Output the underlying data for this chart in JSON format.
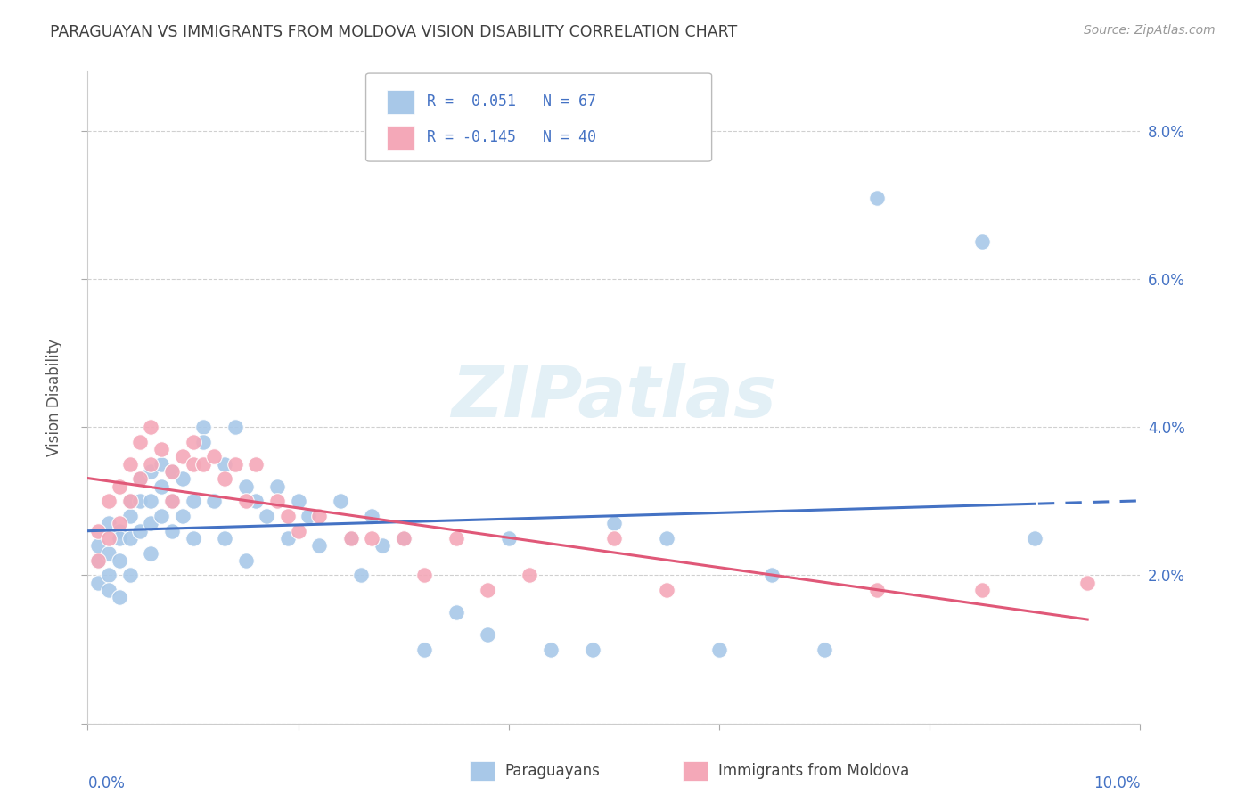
{
  "title": "PARAGUAYAN VS IMMIGRANTS FROM MOLDOVA VISION DISABILITY CORRELATION CHART",
  "source": "Source: ZipAtlas.com",
  "ylabel": "Vision Disability",
  "xmin": 0.0,
  "xmax": 0.1,
  "ymin": 0.0,
  "ymax": 0.088,
  "color_paraguayan": "#a8c8e8",
  "color_moldova": "#f4a8b8",
  "color_line_paraguayan": "#4472c4",
  "color_line_moldova": "#e05878",
  "color_axis_labels": "#4472c4",
  "title_color": "#404040",
  "par_x": [
    0.001,
    0.001,
    0.001,
    0.002,
    0.002,
    0.002,
    0.002,
    0.003,
    0.003,
    0.003,
    0.003,
    0.004,
    0.004,
    0.004,
    0.004,
    0.005,
    0.005,
    0.005,
    0.006,
    0.006,
    0.006,
    0.006,
    0.007,
    0.007,
    0.007,
    0.008,
    0.008,
    0.008,
    0.009,
    0.009,
    0.01,
    0.01,
    0.011,
    0.011,
    0.012,
    0.013,
    0.013,
    0.014,
    0.015,
    0.015,
    0.016,
    0.017,
    0.018,
    0.019,
    0.02,
    0.021,
    0.022,
    0.024,
    0.025,
    0.026,
    0.027,
    0.028,
    0.03,
    0.032,
    0.035,
    0.038,
    0.04,
    0.044,
    0.048,
    0.05,
    0.055,
    0.06,
    0.065,
    0.07,
    0.075,
    0.085,
    0.09
  ],
  "par_y": [
    0.024,
    0.022,
    0.019,
    0.027,
    0.023,
    0.02,
    0.018,
    0.026,
    0.025,
    0.022,
    0.017,
    0.03,
    0.028,
    0.025,
    0.02,
    0.033,
    0.03,
    0.026,
    0.034,
    0.03,
    0.027,
    0.023,
    0.035,
    0.032,
    0.028,
    0.034,
    0.03,
    0.026,
    0.033,
    0.028,
    0.03,
    0.025,
    0.04,
    0.038,
    0.03,
    0.035,
    0.025,
    0.04,
    0.032,
    0.022,
    0.03,
    0.028,
    0.032,
    0.025,
    0.03,
    0.028,
    0.024,
    0.03,
    0.025,
    0.02,
    0.028,
    0.024,
    0.025,
    0.01,
    0.015,
    0.012,
    0.025,
    0.01,
    0.01,
    0.027,
    0.025,
    0.01,
    0.02,
    0.01,
    0.071,
    0.065,
    0.025
  ],
  "mol_x": [
    0.001,
    0.001,
    0.002,
    0.002,
    0.003,
    0.003,
    0.004,
    0.004,
    0.005,
    0.005,
    0.006,
    0.006,
    0.007,
    0.008,
    0.008,
    0.009,
    0.01,
    0.01,
    0.011,
    0.012,
    0.013,
    0.014,
    0.015,
    0.016,
    0.018,
    0.019,
    0.02,
    0.022,
    0.025,
    0.027,
    0.03,
    0.032,
    0.035,
    0.038,
    0.042,
    0.05,
    0.055,
    0.075,
    0.085,
    0.095
  ],
  "mol_y": [
    0.026,
    0.022,
    0.03,
    0.025,
    0.032,
    0.027,
    0.035,
    0.03,
    0.038,
    0.033,
    0.04,
    0.035,
    0.037,
    0.034,
    0.03,
    0.036,
    0.035,
    0.038,
    0.035,
    0.036,
    0.033,
    0.035,
    0.03,
    0.035,
    0.03,
    0.028,
    0.026,
    0.028,
    0.025,
    0.025,
    0.025,
    0.02,
    0.025,
    0.018,
    0.02,
    0.025,
    0.018,
    0.018,
    0.018,
    0.019
  ]
}
